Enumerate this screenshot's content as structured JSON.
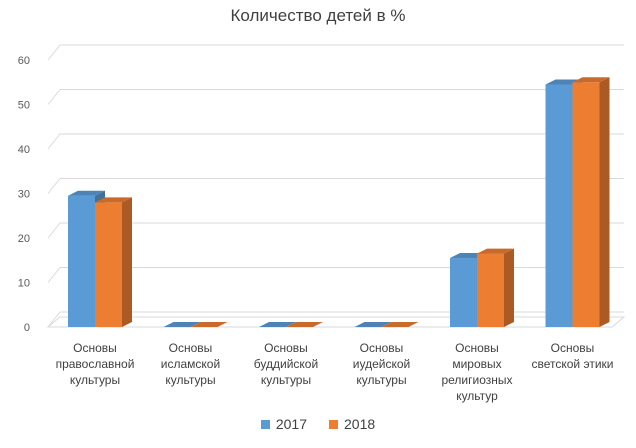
{
  "chart_data": {
    "type": "bar",
    "title": "Количество детей в %",
    "categories": [
      [
        "Основы",
        "православной",
        "культуры"
      ],
      [
        "Основы",
        "исламской",
        "культуры"
      ],
      [
        "Основы",
        "буддийской",
        "культуры"
      ],
      [
        "Основы",
        "иудейской",
        "культуры"
      ],
      [
        "Основы",
        "мировых",
        "религиозных",
        "культур"
      ],
      [
        "Основы",
        "светской этики"
      ]
    ],
    "series": [
      {
        "name": "2017",
        "values": [
          29.5,
          0,
          0,
          0,
          15.5,
          54.5
        ],
        "color": "#5B9BD5"
      },
      {
        "name": "2018",
        "values": [
          28,
          0,
          0,
          0,
          16.5,
          55
        ],
        "color": "#ED7D31"
      }
    ],
    "y_ticks": [
      "0",
      "10",
      "20",
      "30",
      "40",
      "50",
      "60"
    ],
    "ylim": [
      0,
      60
    ],
    "grid": true,
    "legend_position": "bottom",
    "style": "3d-clustered-column"
  }
}
